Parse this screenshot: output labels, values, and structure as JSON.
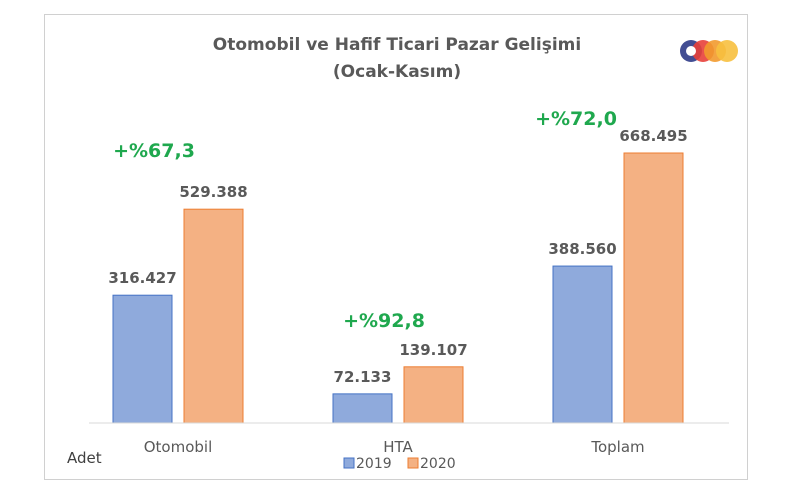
{
  "chart_data": {
    "type": "bar",
    "title_line1": "Otomobil ve Hafif Ticari Pazar Gelişimi",
    "title_line2": "(Ocak-Kasım)",
    "unit_label": "Adet",
    "categories": [
      "Otomobil",
      "HTA",
      "Toplam"
    ],
    "series": [
      {
        "name": "2019",
        "color": "#8faadc",
        "values": [
          316427,
          72133,
          388560
        ],
        "labels": [
          "316.427",
          "72.133",
          "388.560"
        ]
      },
      {
        "name": "2020",
        "color": "#f4b183",
        "values": [
          529388,
          139107,
          668495
        ],
        "labels": [
          "529.388",
          "139.107",
          "668.495"
        ]
      }
    ],
    "growth_labels": [
      "+%67,3",
      "+%92,8",
      "+%72,0"
    ],
    "ylim": [
      0,
      700000
    ],
    "grid": false,
    "legend_position": "bottom"
  },
  "logo": {
    "name": "odd-logo",
    "colors": [
      "#2e3a87",
      "#e8403a",
      "#f29a2e",
      "#f7c03f"
    ]
  }
}
